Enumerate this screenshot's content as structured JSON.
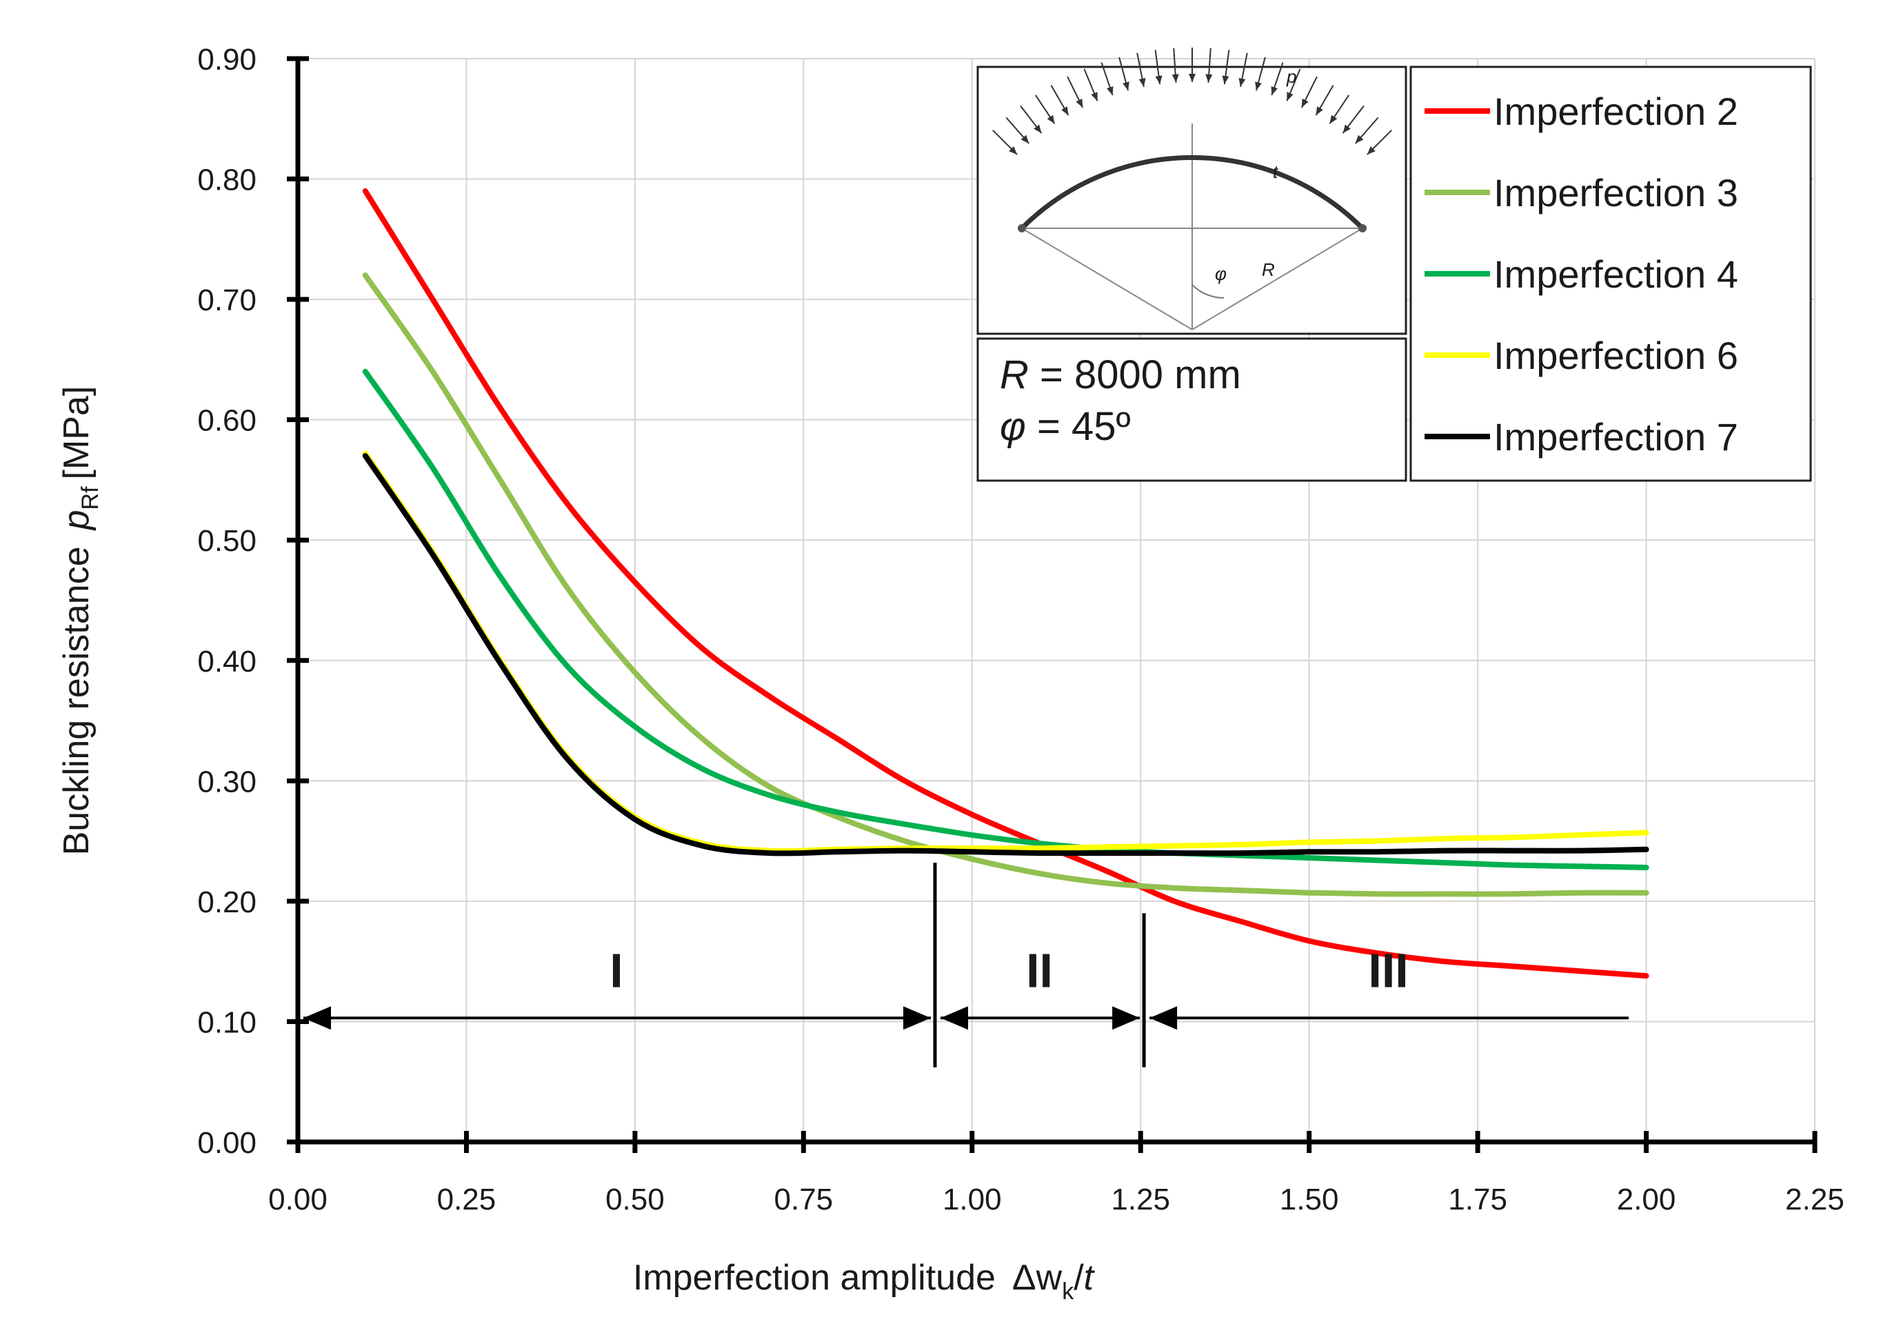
{
  "chart_data": {
    "type": "line",
    "xlabel": "Imperfection amplitude",
    "xlabel_symbol": "Δw",
    "xlabel_sub": "k",
    "xlabel_over": "/",
    "xlabel_t": "t",
    "ylabel": "Buckling resistance",
    "ylabel_symbol": "p",
    "ylabel_sub": "Rf",
    "ylabel_unit": "[MPa]",
    "xlim": [
      0.0,
      2.25
    ],
    "ylim": [
      0.0,
      0.9
    ],
    "xticks": [
      0.0,
      0.25,
      0.5,
      0.75,
      1.0,
      1.25,
      1.5,
      1.75,
      2.0,
      2.25
    ],
    "yticks": [
      0.0,
      0.1,
      0.2,
      0.3,
      0.4,
      0.5,
      0.6,
      0.7,
      0.8,
      0.9
    ],
    "xtick_labels": [
      "0.00",
      "0.25",
      "0.50",
      "0.75",
      "1.00",
      "1.25",
      "1.50",
      "1.75",
      "2.00",
      "2.25"
    ],
    "ytick_labels": [
      "0.00",
      "0.10",
      "0.20",
      "0.30",
      "0.40",
      "0.50",
      "0.60",
      "0.70",
      "0.80",
      "0.90"
    ],
    "grid": true,
    "legend_position": "top-right",
    "series": [
      {
        "name": "Imperfection 2",
        "color": "#ff0000",
        "x": [
          0.1,
          0.2,
          0.3,
          0.4,
          0.5,
          0.6,
          0.7,
          0.8,
          0.9,
          1.0,
          1.1,
          1.2,
          1.3,
          1.4,
          1.5,
          1.6,
          1.7,
          1.8,
          1.9,
          2.0
        ],
        "y": [
          0.79,
          0.7,
          0.61,
          0.53,
          0.465,
          0.41,
          0.37,
          0.335,
          0.3,
          0.272,
          0.248,
          0.225,
          0.2,
          0.183,
          0.167,
          0.157,
          0.15,
          0.146,
          0.142,
          0.138
        ]
      },
      {
        "name": "Imperfection 3",
        "color": "#92c050",
        "x": [
          0.1,
          0.2,
          0.3,
          0.4,
          0.5,
          0.6,
          0.7,
          0.8,
          0.9,
          1.0,
          1.1,
          1.2,
          1.3,
          1.4,
          1.5,
          1.6,
          1.7,
          1.8,
          1.9,
          2.0
        ],
        "y": [
          0.72,
          0.64,
          0.55,
          0.46,
          0.39,
          0.335,
          0.295,
          0.27,
          0.25,
          0.235,
          0.223,
          0.215,
          0.211,
          0.209,
          0.207,
          0.206,
          0.206,
          0.206,
          0.207,
          0.207
        ]
      },
      {
        "name": "Imperfection 4",
        "color": "#00b050",
        "x": [
          0.1,
          0.2,
          0.3,
          0.4,
          0.5,
          0.6,
          0.7,
          0.8,
          0.9,
          1.0,
          1.1,
          1.2,
          1.3,
          1.4,
          1.5,
          1.6,
          1.7,
          1.8,
          1.9,
          2.0
        ],
        "y": [
          0.64,
          0.56,
          0.47,
          0.395,
          0.345,
          0.31,
          0.288,
          0.274,
          0.264,
          0.255,
          0.248,
          0.243,
          0.24,
          0.238,
          0.236,
          0.234,
          0.232,
          0.23,
          0.229,
          0.228
        ]
      },
      {
        "name": "Imperfection 6",
        "color": "#ffff00",
        "x": [
          0.1,
          0.2,
          0.3,
          0.4,
          0.5,
          0.6,
          0.7,
          0.8,
          0.9,
          1.0,
          1.1,
          1.2,
          1.3,
          1.4,
          1.5,
          1.6,
          1.7,
          1.8,
          1.9,
          2.0
        ],
        "y": [
          0.572,
          0.49,
          0.4,
          0.32,
          0.27,
          0.248,
          0.242,
          0.243,
          0.244,
          0.244,
          0.244,
          0.245,
          0.246,
          0.247,
          0.249,
          0.25,
          0.252,
          0.253,
          0.255,
          0.257
        ]
      },
      {
        "name": "Imperfection 7",
        "color": "#000000",
        "x": [
          0.1,
          0.2,
          0.3,
          0.4,
          0.5,
          0.6,
          0.7,
          0.8,
          0.9,
          1.0,
          1.1,
          1.2,
          1.3,
          1.4,
          1.5,
          1.6,
          1.7,
          1.8,
          1.9,
          2.0
        ],
        "y": [
          0.57,
          0.488,
          0.398,
          0.318,
          0.268,
          0.246,
          0.24,
          0.241,
          0.242,
          0.241,
          0.24,
          0.24,
          0.24,
          0.24,
          0.241,
          0.241,
          0.242,
          0.242,
          0.242,
          0.243
        ]
      }
    ],
    "regions": [
      {
        "label": "I",
        "x_start": 0.0,
        "x_end": 0.945
      },
      {
        "label": "II",
        "x_start": 0.945,
        "x_end": 1.255
      },
      {
        "label": "III",
        "x_start": 1.255,
        "x_end": 1.98
      }
    ],
    "region_arrow_y": 0.103,
    "region_label_y": 0.14,
    "region_dividers": [
      {
        "x": 0.945,
        "y_min": 0.062,
        "y_max": 0.232
      },
      {
        "x": 1.255,
        "y_min": 0.062,
        "y_max": 0.19
      }
    ],
    "parameters": {
      "R_symbol": "R",
      "R_value": " = 8000 mm",
      "phi_symbol": "φ",
      "phi_value": " = 45º"
    },
    "inset_labels": {
      "p": "p",
      "t": "t",
      "R": "R",
      "phi": "φ"
    }
  }
}
